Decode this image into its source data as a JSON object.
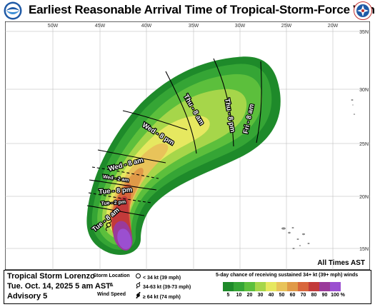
{
  "header": {
    "title": "Earliest Reasonable Arrival Time of Tropical-Storm-Force Winds",
    "left_logo": "noaa-logo",
    "right_logo": "nws-logo"
  },
  "map": {
    "lon_labels": [
      "50W",
      "45W",
      "40W",
      "35W",
      "30W",
      "25W",
      "20W"
    ],
    "lat_labels": [
      "35N",
      "30N",
      "25N",
      "20N",
      "15N"
    ],
    "contour_labels": [
      "Fri - 8 am",
      "Thu - 8 pm",
      "Thu - 8 am",
      "Wed - 8 pm",
      "Wed - 8 am",
      "Wed - 2 am",
      "Tue - 8 pm",
      "Tue - 2 pm",
      "Tue - 8 am"
    ],
    "all_times": "All Times AST",
    "colors": {
      "ocean": "#ffffff",
      "land": "#8a8a8a",
      "c5": "#1e8a2a",
      "c10": "#35a535",
      "c20": "#5cbf3c",
      "c30": "#a6d64a",
      "c40": "#e6e860",
      "c50": "#e8c35a",
      "c60": "#e09a48",
      "c70": "#d8663c",
      "c80": "#c23a3a",
      "c90": "#9a3a9a",
      "c100": "#9b4fd0"
    }
  },
  "legend": {
    "storm_name": "Tropical Storm Lorenzo",
    "advisory_time": "Tue. Oct. 14, 2025  5 am AST",
    "advisory_number": "Advisory 5",
    "location_label": "Storm Location",
    "amp": "&",
    "wind_label": "Wind Speed",
    "sym1": "< 34 kt (39 mph)",
    "sym2": "34-63 kt (39-73 mph)",
    "sym3": "≥ 64 kt (74 mph)",
    "chance_title": "5-day chance of receiving sustained 34+ kt (39+ mph) winds",
    "scale_labels": [
      "5",
      "10",
      "20",
      "30",
      "40",
      "50",
      "60",
      "70",
      "80",
      "90",
      "100 %"
    ],
    "scale_colors": [
      "#1e8a2a",
      "#35a535",
      "#5cbf3c",
      "#a6d64a",
      "#e6e860",
      "#e8c35a",
      "#e09a48",
      "#d8663c",
      "#c23a3a",
      "#9a3a9a",
      "#9b4fd0"
    ]
  }
}
